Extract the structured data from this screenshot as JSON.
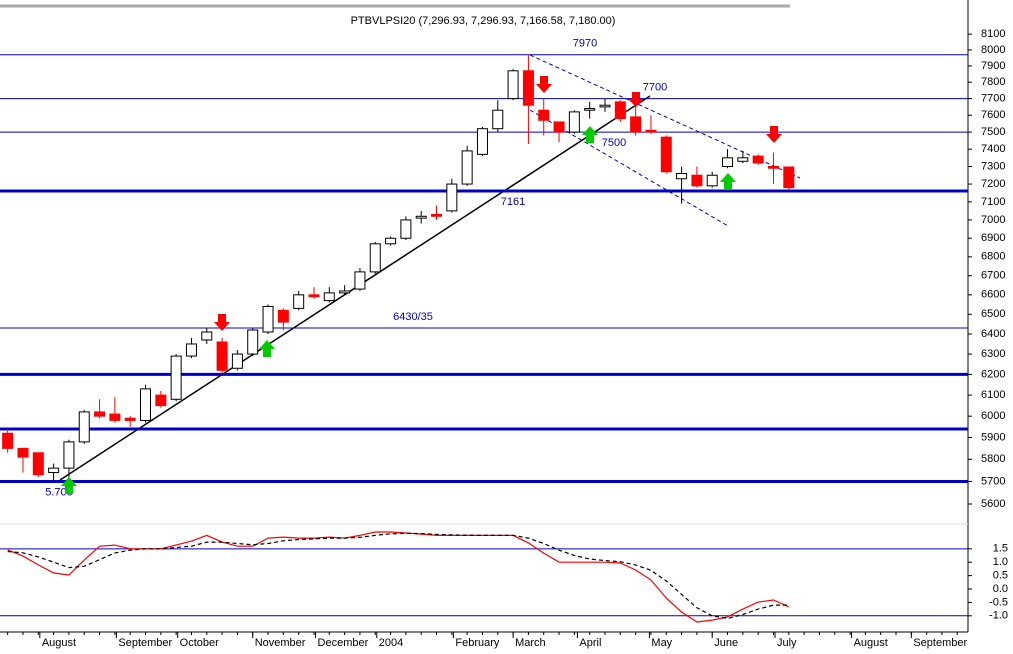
{
  "chart_data": [
    {
      "type": "candlestick",
      "title": "PTBVLPSI20 (7,296.93, 7,296.93, 7,166.58, 7,180.00)",
      "log_scale": true,
      "up_color": "#ffffff",
      "down_color": "#ff0000",
      "xlim": [
        -0.5,
        62.7
      ],
      "ylim": [
        5530,
        8320
      ],
      "yticks": [
        5600,
        5700,
        5800,
        5900,
        6000,
        6100,
        6200,
        6300,
        6400,
        6500,
        6600,
        6700,
        6800,
        6900,
        7000,
        7100,
        7200,
        7300,
        7400,
        7500,
        7600,
        7700,
        7800,
        7900,
        8000,
        8100
      ],
      "open": [
        5920,
        5850,
        5830,
        5740,
        5760,
        5880,
        6020,
        6010,
        5990,
        5980,
        6100,
        6080,
        6290,
        6370,
        6360,
        6230,
        6300,
        6410,
        6520,
        6530,
        6600,
        6570,
        6610,
        6630,
        6720,
        6870,
        6900,
        7010,
        7030,
        7050,
        7200,
        7370,
        7520,
        7700,
        7870,
        7630,
        7560,
        7500,
        7630,
        7650,
        7680,
        7590,
        7510,
        7470,
        7230,
        7250,
        7190,
        7300,
        7330,
        7360,
        7300,
        7296.93
      ],
      "high": [
        5940,
        5850,
        5830,
        5780,
        5890,
        6030,
        6080,
        6090,
        6000,
        6150,
        6120,
        6300,
        6380,
        6430,
        6380,
        6320,
        6430,
        6550,
        6530,
        6620,
        6640,
        6640,
        6650,
        6740,
        6880,
        6910,
        7020,
        7050,
        7080,
        7230,
        7420,
        7530,
        7690,
        7880,
        7970,
        7700,
        7560,
        7630,
        7680,
        7700,
        7690,
        7660,
        7600,
        7480,
        7300,
        7300,
        7270,
        7400,
        7390,
        7370,
        7380,
        7296.93
      ],
      "low": [
        5830,
        5740,
        5720,
        5700,
        5700,
        5870,
        5990,
        5970,
        5950,
        5970,
        6040,
        6070,
        6280,
        6350,
        6200,
        6220,
        6290,
        6400,
        6420,
        6520,
        6580,
        6560,
        6600,
        6620,
        6710,
        6860,
        6890,
        6980,
        7000,
        7040,
        7190,
        7360,
        7500,
        7690,
        7430,
        7480,
        7440,
        7490,
        7580,
        7620,
        7560,
        7480,
        7490,
        7260,
        7090,
        7180,
        7180,
        7290,
        7320,
        7310,
        7200,
        7166.58
      ],
      "close": [
        5850,
        5810,
        5730,
        5760,
        5880,
        6020,
        6000,
        5980,
        5980,
        6130,
        6050,
        6290,
        6350,
        6410,
        6220,
        6300,
        6420,
        6540,
        6460,
        6600,
        6590,
        6610,
        6620,
        6720,
        6870,
        6900,
        7000,
        7020,
        7020,
        7200,
        7390,
        7520,
        7630,
        7870,
        7660,
        7570,
        7500,
        7620,
        7640,
        7660,
        7580,
        7500,
        7500,
        7270,
        7260,
        7190,
        7250,
        7350,
        7350,
        7320,
        7290,
        7180
      ],
      "hlines": [
        {
          "value": 7970,
          "label": "7970",
          "color": "#0000cc",
          "width": 1
        },
        {
          "value": 7700,
          "label": "7700",
          "color": "#0000cc",
          "width": 1
        },
        {
          "value": 7500,
          "label": "7500",
          "color": "#0000cc",
          "width": 1
        },
        {
          "value": 7161,
          "label": "7161",
          "color": "#0000cc",
          "width": 3
        },
        {
          "value": 6430,
          "label": "6430/35",
          "color": "#0000cc",
          "width": 1
        },
        {
          "value": 6200,
          "color": "#0000cc",
          "width": 3
        },
        {
          "value": 5940,
          "color": "#0000cc",
          "width": 3
        },
        {
          "value": 5700,
          "label": "5.700",
          "color": "#0000cc",
          "width": 3
        }
      ]
    },
    {
      "type": "line",
      "xlim": [
        -0.5,
        62.7
      ],
      "ylim": [
        -1.53,
        2.39
      ],
      "yticks": [
        {
          "value": 1.5,
          "label": "1.5"
        },
        {
          "value": 1,
          "label": "1.0"
        },
        {
          "value": 0.5,
          "label": "0.5"
        },
        {
          "value": 0,
          "label": "0.0"
        },
        {
          "value": -0.5,
          "label": "-0.5"
        },
        {
          "value": -1,
          "label": "-1.0"
        }
      ],
      "reference_lines": [
        1.5,
        -1
      ],
      "xticks": [
        {
          "value": 2.1,
          "label": "August"
        },
        {
          "value": 7.1,
          "label": "September"
        },
        {
          "value": 11.1,
          "label": "October"
        },
        {
          "value": 16,
          "label": "November"
        },
        {
          "value": 20.1,
          "label": "December"
        },
        {
          "value": 24.1,
          "label": "2004"
        },
        {
          "value": 29.1,
          "label": "February"
        },
        {
          "value": 33,
          "label": "March"
        },
        {
          "value": 37.2,
          "label": "April"
        },
        {
          "value": 41.9,
          "label": "May"
        },
        {
          "value": 46,
          "label": "June"
        },
        {
          "value": 50.1,
          "label": "July"
        },
        {
          "value": 55.1,
          "label": "August"
        },
        {
          "value": 59,
          "label": "September"
        }
      ],
      "series": [
        {
          "color": "#ff0000",
          "dashed": false,
          "values": [
            1.46,
            1.23,
            0.9,
            0.6,
            0.52,
            1.08,
            1.6,
            1.64,
            1.5,
            1.5,
            1.5,
            1.64,
            1.79,
            2.0,
            1.75,
            1.6,
            1.6,
            1.9,
            1.94,
            1.9,
            1.9,
            1.94,
            1.9,
            2.0,
            2.13,
            2.13,
            2.09,
            2.05,
            2.0,
            2.0,
            2.0,
            2.0,
            2.0,
            2.0,
            1.72,
            1.34,
            1.0,
            1.0,
            1.0,
            1.0,
            0.97,
            0.71,
            0.34,
            -0.34,
            -0.86,
            -1.23,
            -1.16,
            -1.04,
            -0.75,
            -0.49,
            -0.41,
            -0.67
          ]
        },
        {
          "color": "#000000",
          "dashed": true,
          "values": [
            1.4,
            1.35,
            1.2,
            1.0,
            0.8,
            0.85,
            1.1,
            1.35,
            1.45,
            1.5,
            1.5,
            1.55,
            1.6,
            1.75,
            1.75,
            1.7,
            1.65,
            1.7,
            1.8,
            1.85,
            1.87,
            1.9,
            1.9,
            1.93,
            2.0,
            2.06,
            2.08,
            2.07,
            2.04,
            2.02,
            2.01,
            2.0,
            2.0,
            2.0,
            1.9,
            1.7,
            1.45,
            1.25,
            1.12,
            1.06,
            1.02,
            0.9,
            0.7,
            0.3,
            -0.2,
            -0.7,
            -1.0,
            -1.1,
            -0.95,
            -0.75,
            -0.6,
            -0.6
          ]
        }
      ]
    }
  ]
}
